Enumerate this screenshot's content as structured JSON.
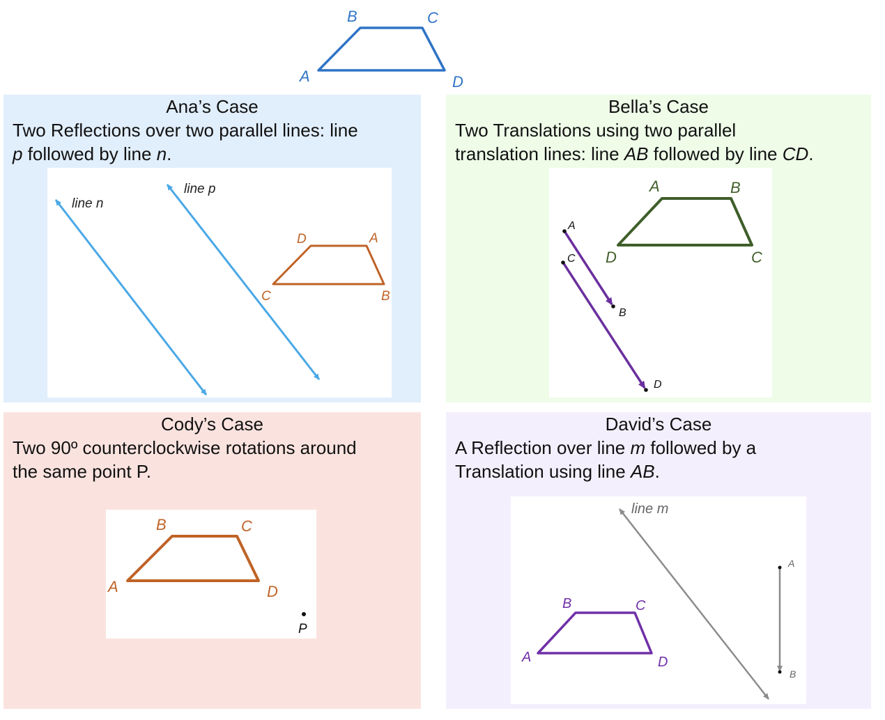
{
  "top_figure": {
    "labels": {
      "A": "A",
      "B": "B",
      "C": "C",
      "D": "D"
    }
  },
  "panels": {
    "ana": {
      "title": "Ana’s Case",
      "desc": {
        "t1": "Two Reflections over two parallel lines: line ",
        "p": "p",
        "t2": " followed by line ",
        "n": "n",
        "t3": "."
      },
      "labels": {
        "line_n": "line n",
        "line_p": "line p",
        "A": "A",
        "B": "B",
        "C": "C",
        "D": "D"
      }
    },
    "bella": {
      "title": "Bella’s Case",
      "desc": {
        "t1": "Two Translations using two parallel",
        "t2": "translation lines: line ",
        "AB": "AB",
        "t3": " followed by line ",
        "CD": "CD",
        "t4": "."
      },
      "labels": {
        "A": "A",
        "B": "B",
        "C": "C",
        "D": "D",
        "vA": "A",
        "vB": "B",
        "vC": "C",
        "vD": "D"
      }
    },
    "cody": {
      "title": "Cody’s Case",
      "desc": {
        "t1": "Two 90º counterclockwise rotations around",
        "t2": "the same point P."
      },
      "labels": {
        "A": "A",
        "B": "B",
        "C": "C",
        "D": "D",
        "P": "P"
      }
    },
    "david": {
      "title": "David’s Case",
      "desc": {
        "t1": "A Reflection over line ",
        "m": "m",
        "t2": " followed by a",
        "t3": "Translation using line ",
        "AB": "AB",
        "t4": "."
      },
      "labels": {
        "line_m": "line m",
        "A": "A",
        "B": "B",
        "C": "C",
        "D": "D",
        "vA": "A",
        "vB": "B"
      }
    }
  },
  "colors": {
    "top_trapezoid": "#2f74c6",
    "ana_lines": "#4aa8e6",
    "orange": "#bf6326",
    "bella_green": "#3f5e2a",
    "bella_purple": "#6a2f9e",
    "david_purple": "#7030a8",
    "david_gray": "#8c8c8c"
  }
}
